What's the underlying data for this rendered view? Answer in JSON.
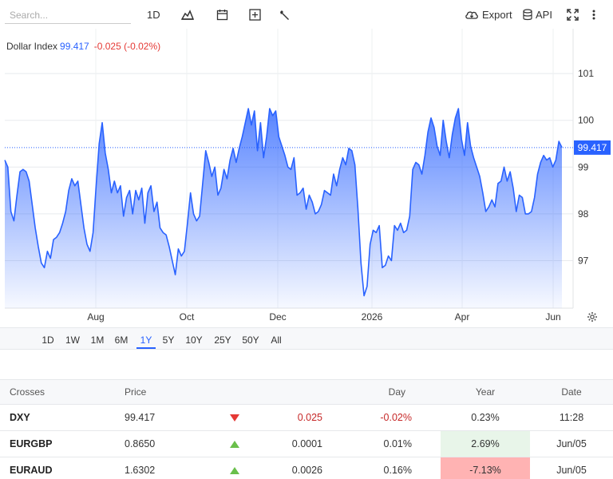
{
  "toolbar": {
    "search_placeholder": "Search...",
    "interval_label": "1D",
    "export_label": "Export",
    "api_label": "API",
    "icons": [
      "chart-type-icon",
      "calendar-icon",
      "add-indicator-icon",
      "wrench-icon",
      "cloud-download-icon",
      "database-icon",
      "fullscreen-icon",
      "more-vertical-icon"
    ]
  },
  "chart_header": {
    "name": "Dollar Index",
    "last": "99.417",
    "change": "-0.025 (-0.02%)"
  },
  "chart_data": {
    "type": "area",
    "title": "Dollar Index",
    "last_price": 99.417,
    "last_price_label": "99.417",
    "x_tick_labels": [
      "Aug",
      "Oct",
      "Dec",
      "2026",
      "Apr",
      "Jun"
    ],
    "y_tick_labels": [
      "97",
      "98",
      "99",
      "100",
      "101"
    ],
    "ylim": [
      96.0,
      101.95
    ],
    "series": [
      {
        "values": [
          99.15,
          99.0,
          98.05,
          97.85,
          98.4,
          98.9,
          98.95,
          98.9,
          98.7,
          98.2,
          97.7,
          97.3,
          96.95,
          96.85,
          97.2,
          97.05,
          97.45,
          97.5,
          97.6,
          97.8,
          98.05,
          98.5,
          98.75,
          98.6,
          98.7,
          98.2,
          97.7,
          97.35,
          97.2,
          97.6,
          98.6,
          99.5,
          99.95,
          99.3,
          98.95,
          98.45,
          98.7,
          98.45,
          98.6,
          97.95,
          98.35,
          98.5,
          98.0,
          98.5,
          98.3,
          98.55,
          97.8,
          98.45,
          98.6,
          98.05,
          98.25,
          97.7,
          97.6,
          97.55,
          97.3,
          97.0,
          96.7,
          97.25,
          97.1,
          97.2,
          97.8,
          98.45,
          98.0,
          97.85,
          97.95,
          98.65,
          99.35,
          99.1,
          98.8,
          99.0,
          98.4,
          98.55,
          98.95,
          98.75,
          99.15,
          99.4,
          99.1,
          99.4,
          99.65,
          99.95,
          100.25,
          99.9,
          100.2,
          99.35,
          99.95,
          99.2,
          99.65,
          100.25,
          100.1,
          100.2,
          99.65,
          99.45,
          99.25,
          99.0,
          98.95,
          99.2,
          98.4,
          98.45,
          98.55,
          98.1,
          98.4,
          98.25,
          98.0,
          98.05,
          98.2,
          98.5,
          98.45,
          98.4,
          98.85,
          98.6,
          98.95,
          99.2,
          99.05,
          99.4,
          99.35,
          99.05,
          98.1,
          96.95,
          96.25,
          96.45,
          97.35,
          97.65,
          97.6,
          97.75,
          96.85,
          96.9,
          97.1,
          97.0,
          97.75,
          97.65,
          97.8,
          97.6,
          97.65,
          97.95,
          98.95,
          99.1,
          99.05,
          98.85,
          99.25,
          99.75,
          100.05,
          99.85,
          99.45,
          99.25,
          100.0,
          99.55,
          99.2,
          99.7,
          100.05,
          100.25,
          99.6,
          99.25,
          99.95,
          99.45,
          99.2,
          99.0,
          98.8,
          98.45,
          98.05,
          98.15,
          98.3,
          98.15,
          98.65,
          98.7,
          99.0,
          98.7,
          98.9,
          98.55,
          98.05,
          98.4,
          98.35,
          98.0,
          98.0,
          98.05,
          98.35,
          98.85,
          99.1,
          99.25,
          99.15,
          99.2,
          99.0,
          99.15,
          99.55,
          99.42
        ]
      }
    ],
    "grid": true,
    "legend": "none"
  },
  "ranges": [
    "1D",
    "1W",
    "1M",
    "6M",
    "1Y",
    "5Y",
    "10Y",
    "25Y",
    "50Y",
    "All"
  ],
  "active_range": "1Y",
  "table": {
    "headers": {
      "name": "Crosses",
      "price": "Price",
      "day": "Day",
      "year": "Year",
      "date": "Date"
    },
    "rows": [
      {
        "name": "DXY",
        "price": "99.417",
        "direction": "down",
        "change": "0.025",
        "pct": "-0.02%",
        "year": "0.23%",
        "date": "11:28"
      },
      {
        "name": "EURGBP",
        "price": "0.8650",
        "direction": "up",
        "change": "0.0001",
        "pct": "0.01%",
        "year": "2.69%",
        "date": "Jun/05"
      },
      {
        "name": "EURAUD",
        "price": "1.6302",
        "direction": "up",
        "change": "0.0026",
        "pct": "0.16%",
        "year": "-7.13%",
        "date": "Jun/05"
      }
    ]
  },
  "colors": {
    "accent": "#2962ff",
    "negative": "#e53935",
    "positive": "#6abf4b"
  }
}
